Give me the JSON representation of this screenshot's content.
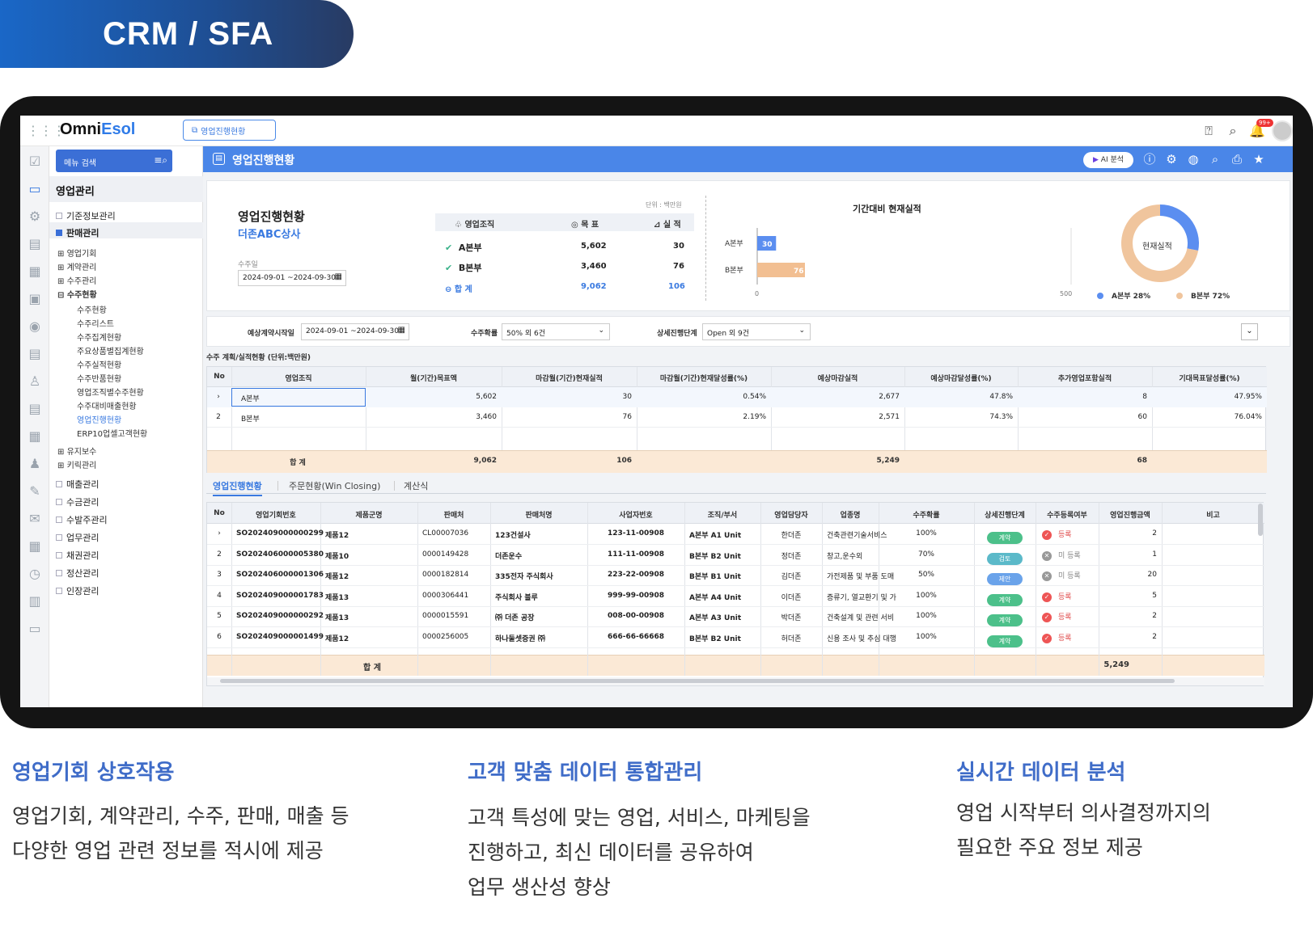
{
  "badge": "CRM / SFA",
  "app": {
    "logo_pre": "Omni",
    "logo_post": "Esol",
    "open_tab": "영업진행현황",
    "notif_count": "99+"
  },
  "sidebar": {
    "search_placeholder": "메뉴 검색",
    "section": "영업관리",
    "items": [
      {
        "label": "기준정보관리"
      },
      {
        "label": "판매관리"
      }
    ],
    "sub_items": [
      "영업기회",
      "계약관리",
      "수주관리",
      "수주현황"
    ],
    "leaf_items": [
      "수주현황",
      "수주리스트",
      "수주집계현황",
      "주요상품별집계현황",
      "수주실적현황",
      "수주반품현황",
      "영업조직별수주현황",
      "수주대비매출현황",
      "영업진행현황",
      "ERP10업셀고객현황"
    ],
    "sub_items2": [
      "유지보수",
      "키릭관리"
    ],
    "bottom_items": [
      "매출관리",
      "수금관리",
      "수발주관리",
      "업무관리",
      "채권관리",
      "정산관리",
      "인장관리"
    ]
  },
  "page": {
    "title": "영업진행현황",
    "ai_label": "AI 분석"
  },
  "summary": {
    "title": "영업진행현황",
    "company": "더존ABC상사",
    "date_label": "수주일",
    "date_range": "2024-09-01 ~2024-09-30",
    "unit": "단위 : 백만원",
    "col_org": "영업조직",
    "col_target": "목 표",
    "col_actual": "실 적",
    "rows": [
      {
        "org": "A본부",
        "target": "5,602",
        "actual": "30"
      },
      {
        "org": "B본부",
        "target": "3,460",
        "actual": "76"
      }
    ],
    "total": {
      "org": "합 계",
      "target": "9,062",
      "actual": "106"
    }
  },
  "chart_data": [
    {
      "type": "bar",
      "title": "기간대비 현재실적",
      "categories": [
        "A본부",
        "B본부"
      ],
      "values": [
        30,
        76
      ],
      "xlim": [
        0,
        500
      ],
      "tick_labels": [
        "0",
        "500"
      ],
      "colors": [
        "#5b8ef0",
        "#f2bf92"
      ]
    },
    {
      "type": "pie",
      "title": "현재실적",
      "labels": [
        "A본부 28%",
        "B본부 72%"
      ],
      "values": [
        28,
        72
      ],
      "colors": [
        "#5b8ef0",
        "#f0c59d"
      ]
    }
  ],
  "filters": {
    "f1_label": "예상계약시작일",
    "f1_value": "2024-09-01 ~2024-09-30",
    "f2_label": "수주확률",
    "f2_value": "50% 외 6건",
    "f3_label": "상세진행단계",
    "f3_value": "Open 외 9건"
  },
  "table1": {
    "caption": "수주 계획/실적현황 (단위:백만원)",
    "headers": [
      "No",
      "영업조직",
      "월(기간)목표액",
      "마감월(기간)현재실적",
      "마감월(기간)현재달성률(%)",
      "예상마감실적",
      "예상마감달성률(%)",
      "추가영업포함실적",
      "기대목표달성률(%)"
    ],
    "rows": [
      [
        "›",
        "A본부",
        "5,602",
        "30",
        "0.54%",
        "2,677",
        "47.8%",
        "8",
        "47.95%"
      ],
      [
        "2",
        "B본부",
        "3,460",
        "76",
        "2.19%",
        "2,571",
        "74.3%",
        "60",
        "76.04%"
      ]
    ],
    "total": [
      "합 계",
      "9,062",
      "106",
      "",
      "5,249",
      "",
      "68",
      ""
    ]
  },
  "tabs": [
    "영업진행현황",
    "주문현황(Win Closing)",
    "계산식"
  ],
  "table2": {
    "headers": [
      "No",
      "영업기회번호",
      "제품군명",
      "판매처",
      "판매처명",
      "사업자번호",
      "조직/부서",
      "영업담당자",
      "업종명",
      "수주확률",
      "상세진행단계",
      "수주등록여부",
      "영업진행금액",
      "비고"
    ],
    "rows": [
      {
        "no": "›",
        "opp": "SO202409000000299",
        "prod": "제품12",
        "cust": "CL00007036",
        "cname": "123건설사",
        "biz": "123-11-00908",
        "org": "A본부 A1 Unit",
        "rep": "한더존",
        "ind": "건축관련기술서비스",
        "prob": "100%",
        "stage": "계약",
        "stage_color": "#4cc08a",
        "reg": "등록",
        "reg_ok": true,
        "amt": "2"
      },
      {
        "no": "2",
        "opp": "SO202406000005380",
        "prod": "제품10",
        "cust": "0000149428",
        "cname": "더존운수",
        "biz": "111-11-00908",
        "org": "B본부 B2 Unit",
        "rep": "정더존",
        "ind": "창고,운수외",
        "prob": "70%",
        "stage": "검토",
        "stage_color": "#5bb9c9",
        "reg": "미 등록",
        "reg_ok": false,
        "amt": "1"
      },
      {
        "no": "3",
        "opp": "SO202406000001306",
        "prod": "제품12",
        "cust": "0000182814",
        "cname": "335전자 주식회사",
        "biz": "223-22-00908",
        "org": "B본부 B1 Unit",
        "rep": "김더존",
        "ind": "가전제품 및 부품 도매",
        "prob": "50%",
        "stage": "제안",
        "stage_color": "#6aa3ea",
        "reg": "미 등록",
        "reg_ok": false,
        "amt": "20"
      },
      {
        "no": "4",
        "opp": "SO202409000001783",
        "prod": "제품13",
        "cust": "0000306441",
        "cname": "주식회사 블루",
        "biz": "999-99-00908",
        "org": "A본부 A4 Unit",
        "rep": "이더존",
        "ind": "증류기, 열교환기 및 가",
        "prob": "100%",
        "stage": "계약",
        "stage_color": "#4cc08a",
        "reg": "등록",
        "reg_ok": true,
        "amt": "5"
      },
      {
        "no": "5",
        "opp": "SO202409000000292",
        "prod": "제품13",
        "cust": "0000015591",
        "cname": "㈜ 더존 공장",
        "biz": "008-00-00908",
        "org": "A본부 A3 Unit",
        "rep": "박더존",
        "ind": "건축설계 및 관련 서비",
        "prob": "100%",
        "stage": "계약",
        "stage_color": "#4cc08a",
        "reg": "등록",
        "reg_ok": true,
        "amt": "2"
      },
      {
        "no": "6",
        "opp": "SO202409000001499",
        "prod": "제품12",
        "cust": "0000256005",
        "cname": "하나둘셋증권 ㈜",
        "biz": "666-66-66668",
        "org": "B본부 B2 Unit",
        "rep": "허더존",
        "ind": "신용 조사 및 추심 대행",
        "prob": "100%",
        "stage": "계약",
        "stage_color": "#4cc08a",
        "reg": "등록",
        "reg_ok": true,
        "amt": "2"
      }
    ],
    "total_label": "합 계",
    "total_amt": "5,249"
  },
  "features": [
    {
      "title": "영업기회 상호작용",
      "lines": [
        "영업기회, 계약관리, 수주, 판매, 매출 등",
        "다양한 영업 관련 정보를 적시에 제공"
      ]
    },
    {
      "title": "고객 맞춤 데이터 통합관리",
      "lines": [
        "고객 특성에 맞는 영업, 서비스, 마케팅을",
        "진행하고, 최신 데이터를 공유하여",
        "업무 생산성 향상"
      ]
    },
    {
      "title": "실시간 데이터 분석",
      "lines": [
        "영업 시작부터 의사결정까지의",
        "필요한 주요 정보 제공"
      ]
    }
  ]
}
